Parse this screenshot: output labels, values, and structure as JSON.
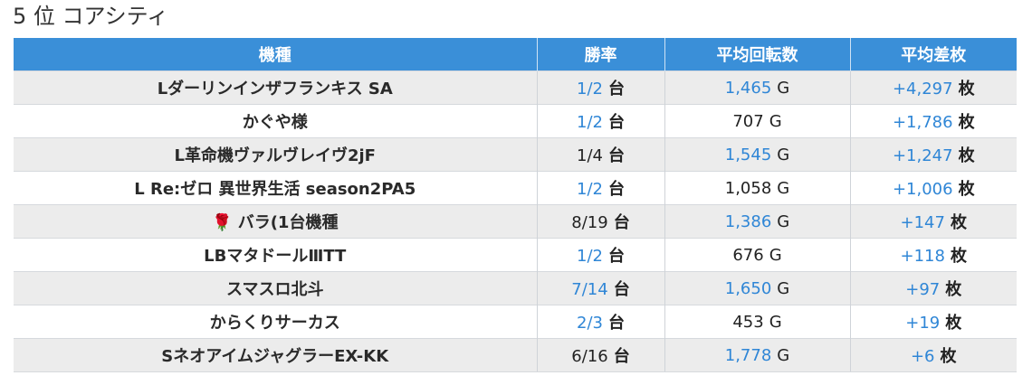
{
  "page": {
    "title": "5 位 コアシティ"
  },
  "table": {
    "headers": [
      "機種",
      "勝率",
      "平均回転数",
      "平均差枚"
    ],
    "rows": [
      {
        "name": "Lダーリンインザフランキス SA",
        "win_rate": "1/2",
        "win_rate_link": true,
        "win_unit": "台",
        "spins": "1,465",
        "spins_link": true,
        "spins_unit": "G",
        "diff": "+4,297",
        "diff_link": true,
        "diff_unit": "枚"
      },
      {
        "name": "かぐや様",
        "win_rate": "1/2",
        "win_rate_link": true,
        "win_unit": "台",
        "spins": "707",
        "spins_link": false,
        "spins_unit": "G",
        "diff": "+1,786",
        "diff_link": true,
        "diff_unit": "枚"
      },
      {
        "name": "L革命機ヴァルヴレイヴ2jF",
        "win_rate": "1/4",
        "win_rate_link": false,
        "win_unit": "台",
        "spins": "1,545",
        "spins_link": true,
        "spins_unit": "G",
        "diff": "+1,247",
        "diff_link": true,
        "diff_unit": "枚"
      },
      {
        "name": "L Re:ゼロ 異世界生活 season2PA5",
        "win_rate": "1/2",
        "win_rate_link": true,
        "win_unit": "台",
        "spins": "1,058",
        "spins_link": false,
        "spins_unit": "G",
        "diff": "+1,006",
        "diff_link": true,
        "diff_unit": "枚"
      },
      {
        "name": "🌹 バラ(1台機種",
        "win_rate": "8/19",
        "win_rate_link": false,
        "win_unit": "台",
        "spins": "1,386",
        "spins_link": true,
        "spins_unit": "G",
        "diff": "+147",
        "diff_link": true,
        "diff_unit": "枚"
      },
      {
        "name": "LBマタドールⅢTT",
        "win_rate": "1/2",
        "win_rate_link": true,
        "win_unit": "台",
        "spins": "676",
        "spins_link": false,
        "spins_unit": "G",
        "diff": "+118",
        "diff_link": true,
        "diff_unit": "枚"
      },
      {
        "name": "スマスロ北斗",
        "win_rate": "7/14",
        "win_rate_link": true,
        "win_unit": "台",
        "spins": "1,650",
        "spins_link": true,
        "spins_unit": "G",
        "diff": "+97",
        "diff_link": true,
        "diff_unit": "枚"
      },
      {
        "name": "からくりサーカス",
        "win_rate": "2/3",
        "win_rate_link": true,
        "win_unit": "台",
        "spins": "453",
        "spins_link": false,
        "spins_unit": "G",
        "diff": "+19",
        "diff_link": true,
        "diff_unit": "枚"
      },
      {
        "name": "SネオアイムジャグラーEX-KK",
        "win_rate": "6/16",
        "win_rate_link": false,
        "win_unit": "台",
        "spins": "1,778",
        "spins_link": true,
        "spins_unit": "G",
        "diff": "+6",
        "diff_link": true,
        "diff_unit": "枚"
      }
    ]
  },
  "colors": {
    "header_bg": "#3a8fd8",
    "link_blue": "#2f86d6",
    "stripe_gray": "#ececec"
  }
}
